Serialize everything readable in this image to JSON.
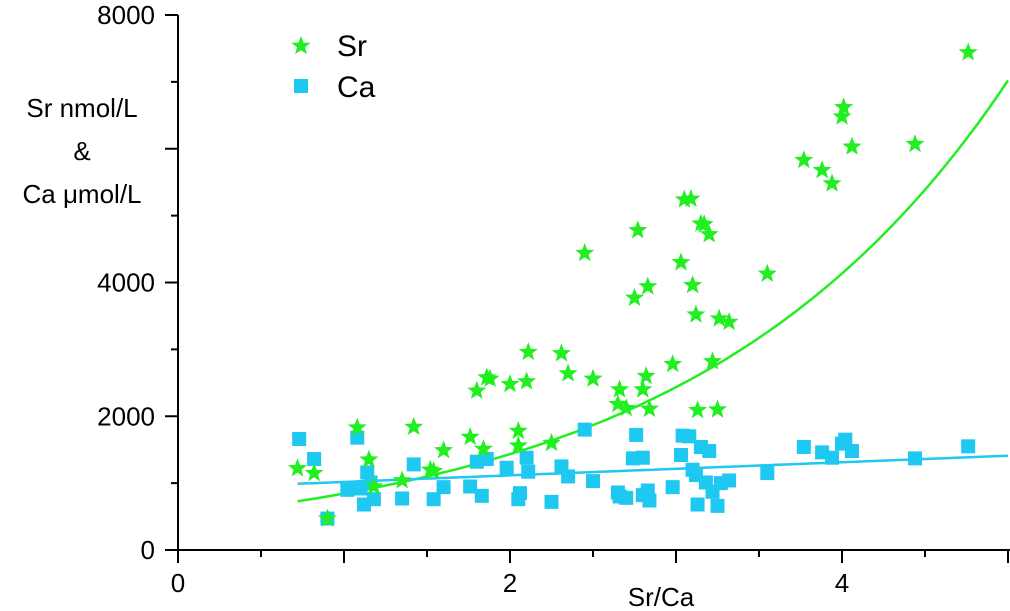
{
  "chart_data": {
    "type": "scatter",
    "title": "",
    "xlabel": "Sr/Ca",
    "ylabel_lines": [
      "Sr nmol/L",
      "&",
      "Ca μmol/L"
    ],
    "xlim": [
      0,
      5
    ],
    "ylim": [
      0,
      8000
    ],
    "x_ticks": [
      0,
      2,
      4
    ],
    "y_ticks": [
      0,
      2000,
      4000,
      8000
    ],
    "legend_position": "top-left",
    "grid": false,
    "series": [
      {
        "name": "Sr",
        "marker": "star",
        "color": "#22ee22",
        "points": [
          [
            0.72,
            1220
          ],
          [
            0.82,
            1150
          ],
          [
            0.9,
            470
          ],
          [
            1.08,
            1830
          ],
          [
            1.15,
            1350
          ],
          [
            1.18,
            950
          ],
          [
            1.35,
            1040
          ],
          [
            1.42,
            1840
          ],
          [
            1.52,
            1200
          ],
          [
            1.54,
            1180
          ],
          [
            1.6,
            1490
          ],
          [
            1.76,
            1690
          ],
          [
            1.8,
            2380
          ],
          [
            1.84,
            1510
          ],
          [
            1.86,
            2580
          ],
          [
            1.88,
            2560
          ],
          [
            2.0,
            2480
          ],
          [
            2.05,
            1560
          ],
          [
            2.05,
            1780
          ],
          [
            2.1,
            2520
          ],
          [
            2.11,
            2960
          ],
          [
            2.25,
            1600
          ],
          [
            2.31,
            2940
          ],
          [
            2.35,
            2640
          ],
          [
            2.45,
            4440
          ],
          [
            2.5,
            2560
          ],
          [
            2.65,
            2180
          ],
          [
            2.66,
            2400
          ],
          [
            2.7,
            2120
          ],
          [
            2.75,
            3770
          ],
          [
            2.77,
            4780
          ],
          [
            2.8,
            2400
          ],
          [
            2.82,
            2600
          ],
          [
            2.83,
            3940
          ],
          [
            2.84,
            2110
          ],
          [
            2.98,
            2780
          ],
          [
            3.03,
            4300
          ],
          [
            3.05,
            5240
          ],
          [
            3.09,
            5250
          ],
          [
            3.1,
            3960
          ],
          [
            3.12,
            3520
          ],
          [
            3.13,
            2090
          ],
          [
            3.15,
            4880
          ],
          [
            3.17,
            4870
          ],
          [
            3.2,
            4720
          ],
          [
            3.22,
            2820
          ],
          [
            3.26,
            3460
          ],
          [
            3.25,
            2100
          ],
          [
            3.32,
            3410
          ],
          [
            3.55,
            4130
          ],
          [
            3.77,
            5830
          ],
          [
            3.88,
            5680
          ],
          [
            3.94,
            5480
          ],
          [
            4.0,
            6480
          ],
          [
            4.01,
            6620
          ],
          [
            4.06,
            6030
          ],
          [
            4.44,
            6070
          ],
          [
            4.76,
            7440
          ]
        ],
        "fit": {
          "model": "exponential",
          "a": 497,
          "b": 0.5296,
          "x_range": [
            0.72,
            5.0
          ]
        }
      },
      {
        "name": "Ca",
        "marker": "square",
        "color": "#1ec8f0",
        "points": [
          [
            0.73,
            1660
          ],
          [
            0.82,
            1360
          ],
          [
            0.9,
            470
          ],
          [
            1.02,
            900
          ],
          [
            1.08,
            1680
          ],
          [
            1.1,
            920
          ],
          [
            1.12,
            680
          ],
          [
            1.14,
            1160
          ],
          [
            1.16,
            1010
          ],
          [
            1.18,
            760
          ],
          [
            1.35,
            770
          ],
          [
            1.42,
            1280
          ],
          [
            1.54,
            760
          ],
          [
            1.6,
            940
          ],
          [
            1.76,
            950
          ],
          [
            1.8,
            1320
          ],
          [
            1.83,
            810
          ],
          [
            1.86,
            1360
          ],
          [
            1.98,
            1230
          ],
          [
            2.05,
            760
          ],
          [
            2.06,
            850
          ],
          [
            2.1,
            1380
          ],
          [
            2.11,
            1170
          ],
          [
            2.25,
            720
          ],
          [
            2.31,
            1250
          ],
          [
            2.35,
            1100
          ],
          [
            2.45,
            1800
          ],
          [
            2.5,
            1030
          ],
          [
            2.65,
            860
          ],
          [
            2.66,
            800
          ],
          [
            2.7,
            780
          ],
          [
            2.74,
            1370
          ],
          [
            2.76,
            1720
          ],
          [
            2.8,
            1380
          ],
          [
            2.8,
            820
          ],
          [
            2.83,
            890
          ],
          [
            2.84,
            740
          ],
          [
            2.98,
            940
          ],
          [
            3.03,
            1420
          ],
          [
            3.04,
            1710
          ],
          [
            3.08,
            1700
          ],
          [
            3.1,
            1200
          ],
          [
            3.12,
            1120
          ],
          [
            3.13,
            680
          ],
          [
            3.15,
            1540
          ],
          [
            3.18,
            1010
          ],
          [
            3.2,
            1480
          ],
          [
            3.22,
            870
          ],
          [
            3.25,
            660
          ],
          [
            3.27,
            1000
          ],
          [
            3.32,
            1040
          ],
          [
            3.55,
            1150
          ],
          [
            3.77,
            1540
          ],
          [
            3.88,
            1460
          ],
          [
            3.94,
            1380
          ],
          [
            4.0,
            1590
          ],
          [
            4.02,
            1650
          ],
          [
            4.06,
            1480
          ],
          [
            4.44,
            1370
          ],
          [
            4.76,
            1550
          ]
        ],
        "fit": {
          "model": "linear",
          "a": 920,
          "b": 98,
          "x_range": [
            0.72,
            5.0
          ]
        }
      }
    ]
  }
}
